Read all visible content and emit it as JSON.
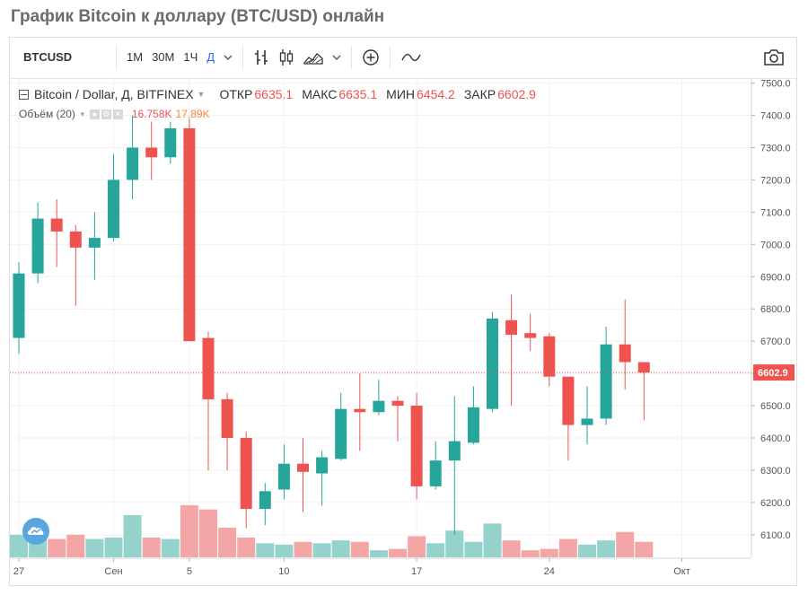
{
  "page": {
    "title": "График Bitcoin к доллару (BTC/USD) онлайн"
  },
  "toolbar": {
    "symbol": "BTCUSD",
    "intervals": [
      "1М",
      "30М",
      "1Ч",
      "Д"
    ],
    "active_interval": "Д",
    "icons": [
      "chevron-down-icon",
      "compare-icon",
      "candles-icon",
      "area-style-icon",
      "indicators-plus-icon",
      "templates-icon",
      "camera-icon"
    ]
  },
  "legend": {
    "series_name": "Bitcoin / Dollar, Д, BITFINEX",
    "open_label": "ОТКР",
    "open_value": "6635.1",
    "high_label": "МАКС",
    "high_value": "6635.1",
    "low_label": "МИН",
    "low_value": "6454.2",
    "close_label": "ЗАКР",
    "close_value": "6602.9"
  },
  "volume_legend": {
    "name": "Объём (20)",
    "value_1": "16.758K",
    "value_2": "17.89K"
  },
  "colors": {
    "up": "#26a69a",
    "down": "#ef5350",
    "up_volume": "#95d2cb",
    "down_volume": "#f3a6a5",
    "price_line": "#ef5350"
  },
  "chart_data": {
    "type": "candlestick",
    "symbol": "BTCUSD",
    "exchange": "BITFINEX",
    "interval": "Д",
    "last_price": 6602.9,
    "last_price_label": "6602.9",
    "ylim": [
      6030,
      7510
    ],
    "y_ticks": [
      6100,
      6200,
      6300,
      6400,
      6500,
      6600,
      6700,
      6800,
      6900,
      7000,
      7100,
      7200,
      7300,
      7400,
      7500
    ],
    "y_tick_labels": [
      "6100.0",
      "6200.0",
      "6300.0",
      "6400.0",
      "6500.0",
      "6600.0",
      "6700.0",
      "6800.0",
      "6900.0",
      "7000.0",
      "7100.0",
      "7200.0",
      "7300.0",
      "7400.0",
      "7500.0"
    ],
    "x_tick_labels": [
      {
        "label": "27",
        "index": 0
      },
      {
        "label": "Сен",
        "index": 5
      },
      {
        "label": "5",
        "index": 9
      },
      {
        "label": "10",
        "index": 14
      },
      {
        "label": "17",
        "index": 21
      },
      {
        "label": "24",
        "index": 28
      },
      {
        "label": "Окт",
        "index": 35
      }
    ],
    "volume_range": [
      0,
      65
    ],
    "candles": [
      {
        "o": 6710,
        "h": 6945,
        "l": 6660,
        "c": 6910,
        "v": 16
      },
      {
        "o": 6910,
        "h": 7130,
        "l": 6880,
        "c": 7080,
        "v": 20
      },
      {
        "o": 7080,
        "h": 7140,
        "l": 6930,
        "c": 7040,
        "v": 13
      },
      {
        "o": 7040,
        "h": 7060,
        "l": 6810,
        "c": 6990,
        "v": 16
      },
      {
        "o": 6990,
        "h": 7100,
        "l": 6890,
        "c": 7020,
        "v": 13
      },
      {
        "o": 7020,
        "h": 7280,
        "l": 7010,
        "c": 7200,
        "v": 14
      },
      {
        "o": 7200,
        "h": 7400,
        "l": 7140,
        "c": 7300,
        "v": 30
      },
      {
        "o": 7300,
        "h": 7380,
        "l": 7200,
        "c": 7270,
        "v": 14
      },
      {
        "o": 7270,
        "h": 7380,
        "l": 7250,
        "c": 7360,
        "v": 13
      },
      {
        "o": 7360,
        "h": 7390,
        "l": 6700,
        "c": 6700,
        "v": 37
      },
      {
        "o": 6710,
        "h": 6730,
        "l": 6300,
        "c": 6520,
        "v": 34
      },
      {
        "o": 6520,
        "h": 6540,
        "l": 6300,
        "c": 6400,
        "v": 21
      },
      {
        "o": 6400,
        "h": 6420,
        "l": 6120,
        "c": 6180,
        "v": 14
      },
      {
        "o": 6180,
        "h": 6260,
        "l": 6130,
        "c": 6235,
        "v": 10
      },
      {
        "o": 6240,
        "h": 6380,
        "l": 6210,
        "c": 6320,
        "v": 9
      },
      {
        "o": 6320,
        "h": 6400,
        "l": 6170,
        "c": 6295,
        "v": 11
      },
      {
        "o": 6290,
        "h": 6360,
        "l": 6190,
        "c": 6340,
        "v": 10
      },
      {
        "o": 6335,
        "h": 6540,
        "l": 6330,
        "c": 6490,
        "v": 12
      },
      {
        "o": 6490,
        "h": 6600,
        "l": 6360,
        "c": 6480,
        "v": 11
      },
      {
        "o": 6480,
        "h": 6580,
        "l": 6470,
        "c": 6515,
        "v": 5
      },
      {
        "o": 6515,
        "h": 6530,
        "l": 6390,
        "c": 6500,
        "v": 6
      },
      {
        "o": 6500,
        "h": 6540,
        "l": 6210,
        "c": 6250,
        "v": 15
      },
      {
        "o": 6250,
        "h": 6390,
        "l": 6240,
        "c": 6330,
        "v": 10
      },
      {
        "o": 6330,
        "h": 6530,
        "l": 6100,
        "c": 6390,
        "v": 19
      },
      {
        "o": 6385,
        "h": 6560,
        "l": 6380,
        "c": 6495,
        "v": 11
      },
      {
        "o": 6490,
        "h": 6790,
        "l": 6480,
        "c": 6770,
        "v": 24
      },
      {
        "o": 6765,
        "h": 6845,
        "l": 6500,
        "c": 6720,
        "v": 12
      },
      {
        "o": 6725,
        "h": 6785,
        "l": 6670,
        "c": 6710,
        "v": 5
      },
      {
        "o": 6715,
        "h": 6725,
        "l": 6560,
        "c": 6590,
        "v": 6
      },
      {
        "o": 6590,
        "h": 6590,
        "l": 6330,
        "c": 6440,
        "v": 13
      },
      {
        "o": 6440,
        "h": 6560,
        "l": 6380,
        "c": 6460,
        "v": 9
      },
      {
        "o": 6460,
        "h": 6745,
        "l": 6440,
        "c": 6690,
        "v": 12
      },
      {
        "o": 6690,
        "h": 6830,
        "l": 6550,
        "c": 6635,
        "v": 18
      },
      {
        "o": 6635.1,
        "h": 6635.1,
        "l": 6454.2,
        "c": 6602.9,
        "v": 11
      }
    ]
  }
}
